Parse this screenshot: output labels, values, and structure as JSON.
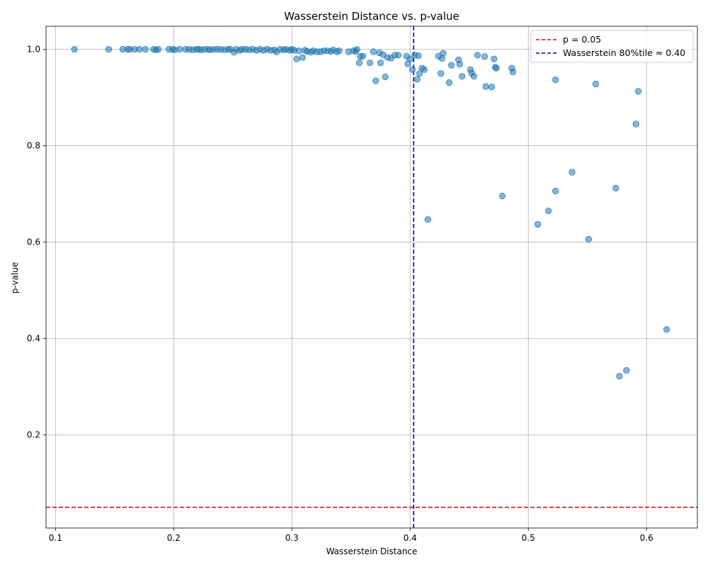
{
  "chart_data": {
    "type": "scatter",
    "title": "Wasserstein Distance vs. p-value",
    "xlabel": "Wasserstein Distance",
    "ylabel": "p-value",
    "xlim": [
      0.092,
      0.643
    ],
    "ylim": [
      0.007,
      1.048
    ],
    "xticks": [
      0.1,
      0.2,
      0.3,
      0.4,
      0.5,
      0.6
    ],
    "xtick_labels": [
      "0.1",
      "0.2",
      "0.3",
      "0.4",
      "0.5",
      "0.6"
    ],
    "yticks": [
      0.2,
      0.4,
      0.6,
      0.8,
      1.0
    ],
    "ytick_labels": [
      "0.2",
      "0.4",
      "0.6",
      "0.8",
      "1.0"
    ],
    "grid": true,
    "legend_position": "top-right",
    "point_color": "#1f77b4",
    "reference_lines": [
      {
        "orientation": "horizontal",
        "value": 0.05,
        "label": "p = 0.05",
        "color": "#e00000",
        "style": "dashed"
      },
      {
        "orientation": "vertical",
        "value": 0.403,
        "label": "Wasserstein 80%tile ≈ 0.40",
        "color": "#0000b0",
        "style": "dashed"
      }
    ],
    "series": [
      {
        "points": [
          [
            0.116,
            1.0
          ],
          [
            0.145,
            1.0
          ],
          [
            0.157,
            1.0
          ],
          [
            0.161,
            1.0
          ],
          [
            0.163,
            1.0
          ],
          [
            0.167,
            1.0
          ],
          [
            0.171,
            1.0
          ],
          [
            0.176,
            1.0
          ],
          [
            0.183,
            1.0
          ],
          [
            0.185,
            0.999
          ],
          [
            0.187,
            1.0
          ],
          [
            0.196,
            1.0
          ],
          [
            0.199,
            1.0
          ],
          [
            0.201,
            0.999
          ],
          [
            0.205,
            1.0
          ],
          [
            0.21,
            1.0
          ],
          [
            0.213,
            1.0
          ],
          [
            0.216,
            0.999
          ],
          [
            0.219,
            1.0
          ],
          [
            0.221,
            1.0
          ],
          [
            0.223,
            0.999
          ],
          [
            0.226,
            1.0
          ],
          [
            0.229,
            1.0
          ],
          [
            0.231,
            0.999
          ],
          [
            0.234,
            1.0
          ],
          [
            0.237,
            1.0
          ],
          [
            0.24,
            1.0
          ],
          [
            0.243,
            0.999
          ],
          [
            0.246,
            1.0
          ],
          [
            0.248,
            1.0
          ],
          [
            0.251,
            0.994
          ],
          [
            0.253,
            1.0
          ],
          [
            0.256,
            0.998
          ],
          [
            0.258,
            1.0
          ],
          [
            0.261,
            1.0
          ],
          [
            0.264,
            0.999
          ],
          [
            0.267,
            1.0
          ],
          [
            0.27,
            0.998
          ],
          [
            0.273,
            1.0
          ],
          [
            0.276,
            0.998
          ],
          [
            0.279,
            1.0
          ],
          [
            0.282,
            0.998
          ],
          [
            0.285,
            0.999
          ],
          [
            0.287,
            0.995
          ],
          [
            0.29,
            1.0
          ],
          [
            0.293,
            0.999
          ],
          [
            0.295,
            1.0
          ],
          [
            0.298,
            0.998
          ],
          [
            0.3,
            1.0
          ],
          [
            0.302,
            0.998
          ],
          [
            0.304,
            0.98
          ],
          [
            0.306,
            0.997
          ],
          [
            0.309,
            0.983
          ],
          [
            0.311,
            0.998
          ],
          [
            0.313,
            0.996
          ],
          [
            0.316,
            0.994
          ],
          [
            0.318,
            0.997
          ],
          [
            0.321,
            0.995
          ],
          [
            0.324,
            0.995
          ],
          [
            0.327,
            0.997
          ],
          [
            0.33,
            0.997
          ],
          [
            0.333,
            0.996
          ],
          [
            0.335,
            0.999
          ],
          [
            0.338,
            0.995
          ],
          [
            0.34,
            0.997
          ],
          [
            0.348,
            0.995
          ],
          [
            0.352,
            0.997
          ],
          [
            0.354,
            0.996
          ],
          [
            0.355,
            1.0
          ],
          [
            0.357,
            0.972
          ],
          [
            0.358,
            0.985
          ],
          [
            0.36,
            0.986
          ],
          [
            0.366,
            0.972
          ],
          [
            0.369,
            0.995
          ],
          [
            0.371,
            0.935
          ],
          [
            0.374,
            0.993
          ],
          [
            0.375,
            0.972
          ],
          [
            0.377,
            0.989
          ],
          [
            0.379,
            0.943
          ],
          [
            0.381,
            0.983
          ],
          [
            0.384,
            0.982
          ],
          [
            0.387,
            0.988
          ],
          [
            0.39,
            0.988
          ],
          [
            0.397,
            0.986
          ],
          [
            0.398,
            0.97
          ],
          [
            0.4,
            0.98
          ],
          [
            0.402,
            0.958
          ],
          [
            0.404,
            0.988
          ],
          [
            0.406,
            0.938
          ],
          [
            0.407,
            0.987
          ],
          [
            0.408,
            0.95
          ],
          [
            0.41,
            0.961
          ],
          [
            0.412,
            0.958
          ],
          [
            0.415,
            0.647
          ],
          [
            0.424,
            0.986
          ],
          [
            0.426,
            0.95
          ],
          [
            0.427,
            0.981
          ],
          [
            0.428,
            0.992
          ],
          [
            0.433,
            0.931
          ],
          [
            0.435,
            0.967
          ],
          [
            0.441,
            0.978
          ],
          [
            0.442,
            0.969
          ],
          [
            0.444,
            0.944
          ],
          [
            0.451,
            0.958
          ],
          [
            0.452,
            0.951
          ],
          [
            0.454,
            0.944
          ],
          [
            0.457,
            0.988
          ],
          [
            0.463,
            0.985
          ],
          [
            0.464,
            0.923
          ],
          [
            0.469,
            0.922
          ],
          [
            0.471,
            0.98
          ],
          [
            0.472,
            0.963
          ],
          [
            0.473,
            0.961
          ],
          [
            0.478,
            0.696
          ],
          [
            0.486,
            0.961
          ],
          [
            0.487,
            0.953
          ],
          [
            0.508,
            0.637
          ],
          [
            0.517,
            0.665
          ],
          [
            0.523,
            0.706
          ],
          [
            0.523,
            0.937
          ],
          [
            0.537,
            0.745
          ],
          [
            0.551,
            0.606
          ],
          [
            0.557,
            0.928
          ],
          [
            0.574,
            0.712
          ],
          [
            0.577,
            0.322
          ],
          [
            0.583,
            0.334
          ],
          [
            0.591,
            0.845
          ],
          [
            0.593,
            0.913
          ],
          [
            0.617,
            0.419
          ]
        ]
      }
    ]
  }
}
